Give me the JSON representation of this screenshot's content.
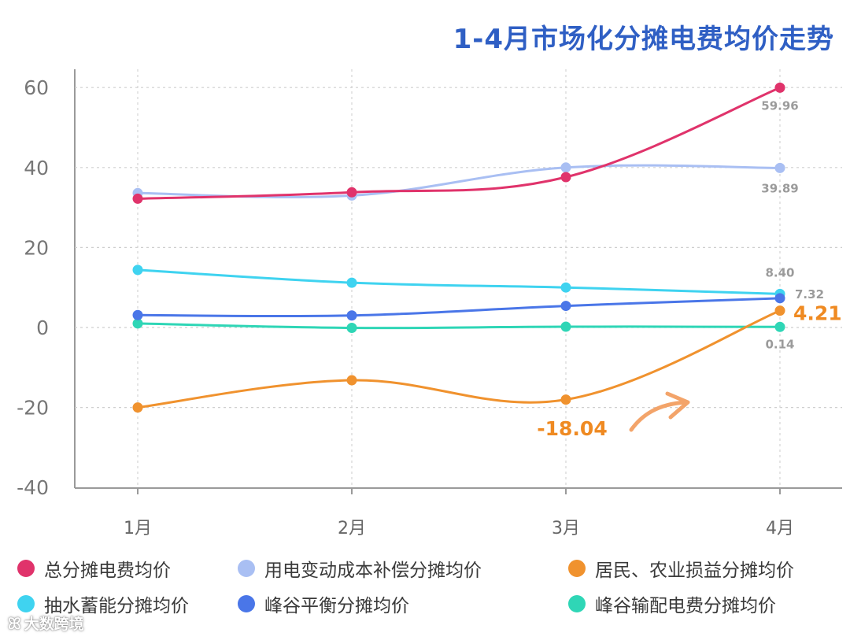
{
  "chart_data": {
    "type": "line",
    "title": "1-4月市场化分摊电费均价走势",
    "categories": [
      "1月",
      "2月",
      "3月",
      "4月"
    ],
    "ylim": [
      -40,
      65
    ],
    "yticks": [
      60,
      40,
      20,
      0,
      -20,
      -40
    ],
    "grid": true,
    "legend_position": "bottom",
    "series": [
      {
        "name": "总分摊电费均价",
        "color": "#e0336b",
        "values": [
          32.2,
          33.8,
          37.6,
          59.96
        ]
      },
      {
        "name": "用电变动成本补偿分摊均价",
        "color": "#a9bff3",
        "values": [
          33.6,
          33.0,
          40.0,
          39.89
        ]
      },
      {
        "name": "居民、农业损益分摊均价",
        "color": "#f0922e",
        "values": [
          -20.0,
          -13.2,
          -18.04,
          4.21
        ]
      },
      {
        "name": "抽水蓄能分摊均价",
        "color": "#3fd3f0",
        "values": [
          14.4,
          11.2,
          10.0,
          8.4
        ]
      },
      {
        "name": "峰谷平衡分摊均价",
        "color": "#4a76e8",
        "values": [
          3.1,
          3.0,
          5.4,
          7.32
        ]
      },
      {
        "name": "峰谷输配电费分摊均价",
        "color": "#2fd6b6",
        "values": [
          1.0,
          -0.1,
          0.2,
          0.14
        ]
      }
    ],
    "annotations": [
      {
        "text": "59.96",
        "series": 0,
        "point": 3,
        "style": "small-gray"
      },
      {
        "text": "39.89",
        "series": 1,
        "point": 3,
        "style": "small-gray"
      },
      {
        "text": "8.40",
        "series": 3,
        "point": 3,
        "style": "small-gray"
      },
      {
        "text": "7.32",
        "series": 4,
        "point": 3,
        "style": "small-gray"
      },
      {
        "text": "0.14",
        "series": 5,
        "point": 3,
        "style": "small-gray"
      },
      {
        "text": "4.21",
        "series": 2,
        "point": 3,
        "style": "big-orange"
      },
      {
        "text": "-18.04",
        "series": 2,
        "point": 2,
        "style": "big-orange"
      }
    ]
  },
  "watermark": {
    "text": "大数跨境",
    "logo": "ꕤ"
  }
}
